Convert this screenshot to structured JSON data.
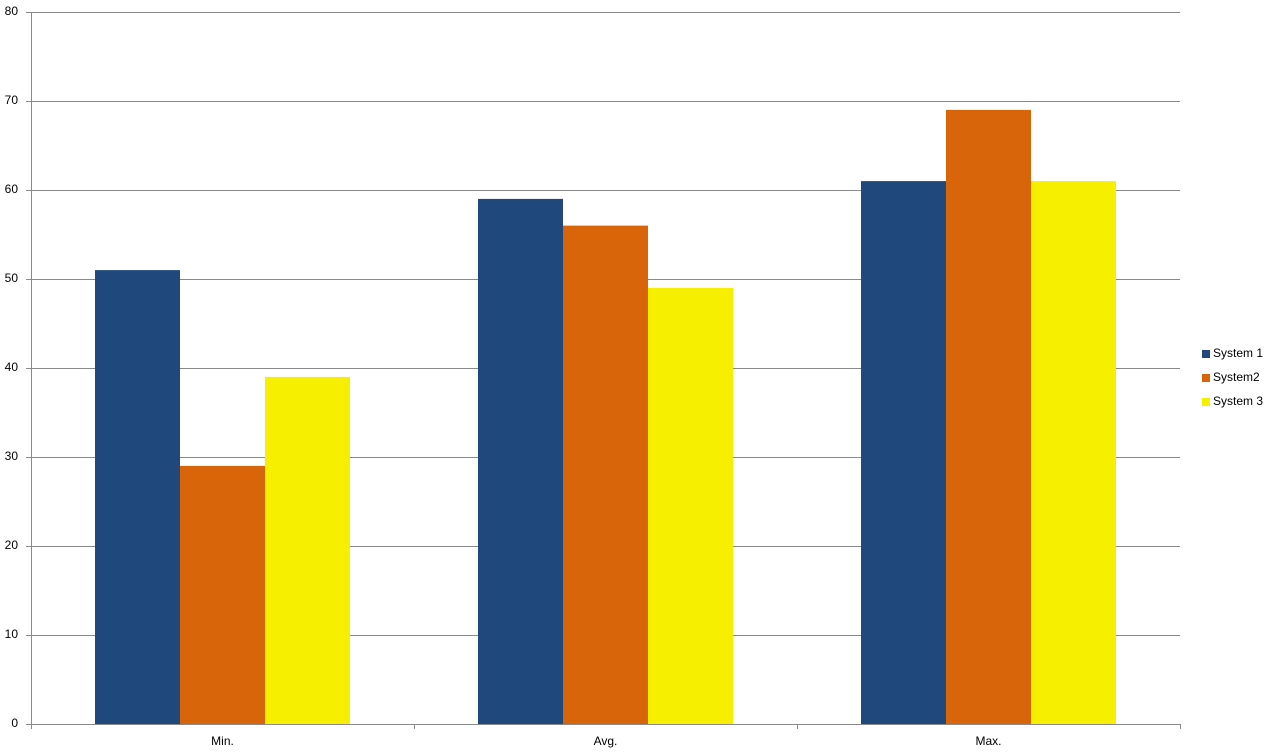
{
  "chart_data": {
    "type": "bar",
    "categories": [
      "Min.",
      "Avg.",
      "Max."
    ],
    "series": [
      {
        "name": "System 1",
        "color": "#1f497d",
        "values": [
          51,
          59,
          61
        ]
      },
      {
        "name": "System2",
        "color": "#d9650b",
        "values": [
          29,
          56,
          69
        ]
      },
      {
        "name": "System 3",
        "color": "#f6ef00",
        "values": [
          39,
          49,
          61
        ]
      }
    ],
    "ylim": [
      0,
      80
    ],
    "yticks": [
      0,
      10,
      20,
      30,
      40,
      50,
      60,
      70,
      80
    ],
    "grid": true,
    "legend": "right"
  }
}
